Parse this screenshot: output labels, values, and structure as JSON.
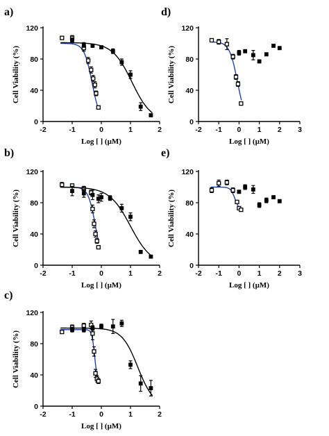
{
  "chart_data": [
    {
      "type": "scatter",
      "panel_label": "a)",
      "xlabel": "Log [ ] (µM)",
      "ylabel": "Cell Viability (%)",
      "xlim": [
        -2,
        2
      ],
      "ylim": [
        0,
        120
      ],
      "xticks": [
        -2,
        -1,
        0,
        1,
        2
      ],
      "yticks": [
        0,
        40,
        80,
        120
      ],
      "series": [
        {
          "marker": "open-square",
          "color": "#000000",
          "x": [
            -1.35,
            -1.0,
            -0.6,
            -0.45,
            -0.35,
            -0.28,
            -0.22,
            -0.18,
            -0.1
          ],
          "y": [
            107,
            107,
            94,
            78,
            66,
            55,
            47,
            36,
            18
          ],
          "err": [
            2,
            3,
            4,
            4,
            4,
            4,
            4,
            3,
            1
          ],
          "fit": {
            "color": "#1f3fbf",
            "top": 100,
            "bottom": 0,
            "logEC50": -0.32,
            "hill": 3.2,
            "xrange": [
              -1.4,
              -0.1
            ]
          }
        },
        {
          "marker": "filled-square",
          "color": "#000000",
          "x": [
            -1.0,
            -0.6,
            -0.3,
            0.0,
            0.4,
            0.7,
            1.0,
            1.35,
            1.7
          ],
          "y": [
            104,
            98,
            97,
            95,
            90,
            76,
            60,
            19,
            8
          ],
          "err": [
            3,
            3,
            2,
            2,
            3,
            4,
            5,
            5,
            1
          ],
          "fit": {
            "color": "#000000",
            "top": 101,
            "bottom": 0,
            "logEC50": 1.05,
            "hill": 1.3,
            "xrange": [
              -1.4,
              1.75
            ]
          }
        }
      ]
    },
    {
      "type": "scatter",
      "panel_label": "b)",
      "xlabel": "Log [ ] (µM)",
      "ylabel": "Cell Viability (%)",
      "xlim": [
        -2,
        2
      ],
      "ylim": [
        0,
        120
      ],
      "xticks": [
        -2,
        -1,
        0,
        1,
        2
      ],
      "yticks": [
        0,
        40,
        80,
        120
      ],
      "series": [
        {
          "marker": "open-square",
          "color": "#000000",
          "x": [
            -1.35,
            -1.0,
            -0.6,
            -0.35,
            -0.3,
            -0.25,
            -0.2,
            -0.15,
            -0.1
          ],
          "y": [
            103,
            102,
            98,
            93,
            72,
            53,
            40,
            31,
            23
          ],
          "err": [
            3,
            2,
            3,
            3,
            5,
            5,
            4,
            3,
            2
          ],
          "fit": {
            "color": "#1f3fbf",
            "top": 100,
            "bottom": 0,
            "logEC50": -0.2,
            "hill": 3.5,
            "xrange": [
              -1.4,
              -0.1
            ]
          }
        },
        {
          "marker": "filled-square",
          "color": "#000000",
          "x": [
            -1.0,
            -0.6,
            -0.3,
            -0.1,
            0.0,
            0.3,
            0.7,
            1.0,
            1.35,
            1.7
          ],
          "y": [
            95,
            92,
            90,
            85,
            87,
            86,
            73,
            62,
            17,
            11
          ],
          "err": [
            6,
            5,
            6,
            5,
            5,
            3,
            5,
            5,
            1,
            1
          ],
          "fit": {
            "color": "#000000",
            "top": 100,
            "bottom": 0,
            "logEC50": 1.0,
            "hill": 1.2,
            "xrange": [
              -1.4,
              1.75
            ]
          }
        }
      ]
    },
    {
      "type": "scatter",
      "panel_label": "c)",
      "xlabel": "Log [ ] (µM)",
      "ylabel": "Cell Viability (%)",
      "xlim": [
        -2,
        2
      ],
      "ylim": [
        0,
        120
      ],
      "xticks": [
        -2,
        -1,
        0,
        1,
        2
      ],
      "yticks": [
        0,
        40,
        80,
        120
      ],
      "series": [
        {
          "marker": "open-square",
          "color": "#000000",
          "x": [
            -1.35,
            -1.0,
            -0.6,
            -0.35,
            -0.3,
            -0.25,
            -0.2,
            -0.15,
            -0.1
          ],
          "y": [
            95,
            101,
            103,
            104,
            93,
            70,
            42,
            35,
            32
          ],
          "err": [
            2,
            3,
            3,
            5,
            8,
            6,
            5,
            4,
            3
          ],
          "fit": {
            "color": "#1f3fbf",
            "top": 98,
            "bottom": 30,
            "logEC50": -0.23,
            "hill": 9.0,
            "xrange": [
              -1.4,
              -0.1
            ]
          }
        },
        {
          "marker": "filled-square",
          "color": "#000000",
          "x": [
            -1.0,
            -0.6,
            -0.3,
            0.0,
            0.4,
            0.7,
            1.0,
            1.35,
            1.7
          ],
          "y": [
            98,
            98,
            100,
            102,
            102,
            106,
            53,
            29,
            23
          ],
          "err": [
            3,
            3,
            3,
            3,
            9,
            4,
            5,
            10,
            10
          ],
          "fit": {
            "color": "#000000",
            "top": 100,
            "bottom": 0,
            "logEC50": 1.25,
            "hill": 1.6,
            "xrange": [
              -1.4,
              1.75
            ]
          }
        }
      ]
    },
    {
      "type": "scatter",
      "panel_label": "d)",
      "xlabel": "Log [ ] (µM)",
      "ylabel": "Cell Viability (%)",
      "xlim": [
        -2,
        3
      ],
      "ylim": [
        0,
        120
      ],
      "xticks": [
        -2,
        -1,
        0,
        1,
        2,
        3
      ],
      "yticks": [
        0,
        40,
        80,
        120
      ],
      "series": [
        {
          "marker": "open-square",
          "color": "#000000",
          "x": [
            -1.35,
            -1.0,
            -0.6,
            -0.3,
            -0.15,
            -0.05,
            0.1
          ],
          "y": [
            104,
            102,
            99,
            83,
            57,
            48,
            23
          ],
          "err": [
            2,
            3,
            7,
            3,
            3,
            3,
            2
          ],
          "fit": {
            "color": "#1f3fbf",
            "top": 102,
            "bottom": 0,
            "logEC50": -0.08,
            "hill": 2.2,
            "xrange": [
              -1.4,
              0.12
            ]
          }
        },
        {
          "marker": "filled-square",
          "color": "#000000",
          "x": [
            0.0,
            0.3,
            0.7,
            1.0,
            1.35,
            1.7,
            2.0
          ],
          "y": [
            88,
            90,
            85,
            77,
            86,
            97,
            94
          ],
          "err": [
            3,
            2,
            6,
            2,
            2,
            2,
            2
          ]
        }
      ]
    },
    {
      "type": "scatter",
      "panel_label": "e)",
      "xlabel": "Log [ ] (µM)",
      "ylabel": "Cell Viability (%)",
      "xlim": [
        -2,
        3
      ],
      "ylim": [
        0,
        120
      ],
      "xticks": [
        -2,
        -1,
        0,
        1,
        2,
        3
      ],
      "yticks": [
        0,
        40,
        80,
        120
      ],
      "series": [
        {
          "marker": "open-square",
          "color": "#000000",
          "x": [
            -1.35,
            -1.0,
            -0.6,
            -0.3,
            -0.1,
            0.0,
            0.1
          ],
          "y": [
            96,
            105,
            106,
            96,
            81,
            73,
            71
          ],
          "err": [
            3,
            4,
            3,
            3,
            2,
            2,
            2
          ],
          "fit": {
            "color": "#1f3fbf",
            "top": 100,
            "bottom": 70,
            "logEC50": -0.2,
            "hill": 4.0,
            "xrange": [
              -1.4,
              0.15
            ]
          }
        },
        {
          "marker": "filled-square",
          "color": "#000000",
          "x": [
            0.0,
            0.3,
            0.7,
            1.0,
            1.35,
            1.7,
            2.0
          ],
          "y": [
            94,
            100,
            97,
            77,
            83,
            87,
            82
          ],
          "err": [
            2,
            3,
            5,
            3,
            3,
            2,
            2
          ]
        }
      ]
    }
  ]
}
